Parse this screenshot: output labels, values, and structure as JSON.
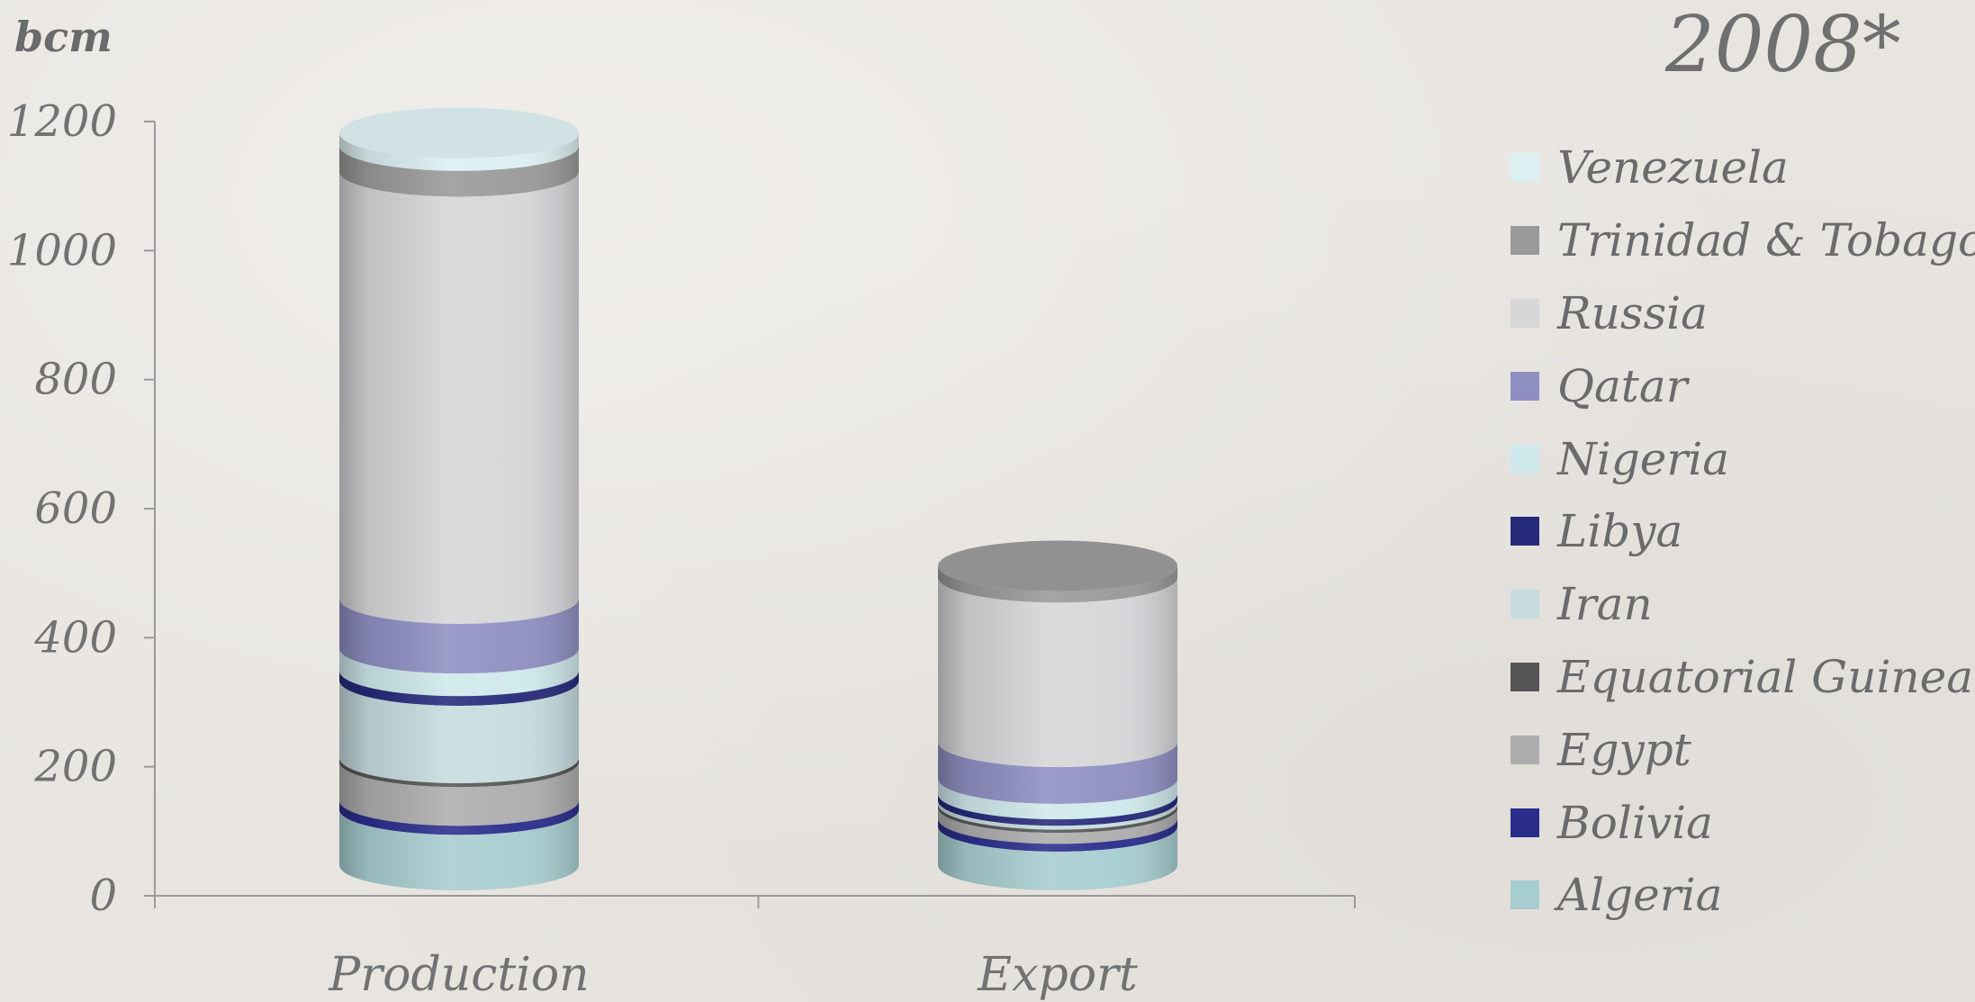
{
  "chart_data": {
    "type": "bar",
    "style": "3d-stacked-cylinder",
    "title": "2008*",
    "ylabel": "bcm",
    "ylim": [
      0,
      1200
    ],
    "yticks": [
      0,
      200,
      400,
      600,
      800,
      1000,
      1200
    ],
    "categories": [
      "Production",
      "Export"
    ],
    "grid": false,
    "legend_position": "right",
    "series": [
      {
        "name": "Algeria",
        "color": "#a7cdd0",
        "values": [
          86,
          60
        ]
      },
      {
        "name": "Bolivia",
        "color": "#2a2d8c",
        "values": [
          14,
          12
        ]
      },
      {
        "name": "Egypt",
        "color": "#adadad",
        "values": [
          60,
          17
        ]
      },
      {
        "name": "Equatorial Guinea",
        "color": "#555555",
        "values": [
          6,
          5
        ]
      },
      {
        "name": "Iran",
        "color": "#c6dcdf",
        "values": [
          120,
          6
        ]
      },
      {
        "name": "Libya",
        "color": "#252a7a",
        "values": [
          15,
          10
        ]
      },
      {
        "name": "Nigeria",
        "color": "#cfe9ec",
        "values": [
          35,
          24
        ]
      },
      {
        "name": "Qatar",
        "color": "#8f8fc2",
        "values": [
          77,
          57
        ]
      },
      {
        "name": "Russia",
        "color": "#d6d6d9",
        "values": [
          662,
          255
        ]
      },
      {
        "name": "Trinidad & Tobago",
        "color": "#999999",
        "values": [
          40,
          18
        ]
      },
      {
        "name": "Venezuela",
        "color": "#dceff1",
        "values": [
          20,
          0
        ]
      }
    ]
  }
}
